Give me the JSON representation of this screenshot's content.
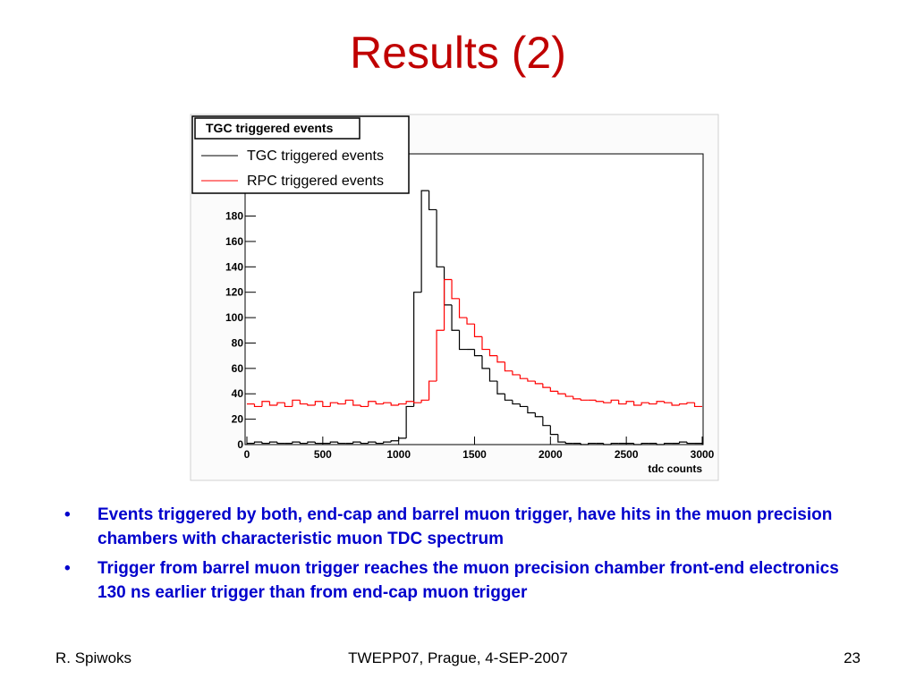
{
  "slide": {
    "title": "Results (2)",
    "bullets": [
      "Events triggered by both, end-cap and barrel muon trigger, have hits in the muon precision chambers with characteristic muon TDC spectrum",
      "Trigger from barrel muon trigger reaches the muon precision chamber front-end electronics 130 ns earlier trigger than from end-cap muon trigger"
    ],
    "footer": {
      "left": "R. Spiwoks",
      "center": "TWEPP07, Prague, 4-SEP-2007",
      "right": "23"
    }
  },
  "chart_data": {
    "type": "histogram",
    "title": "TGC triggered events",
    "x_label": "tdc counts",
    "bins": [
      0,
      50,
      100,
      150,
      200,
      250,
      300,
      350,
      400,
      450,
      500,
      550,
      600,
      650,
      700,
      750,
      800,
      850,
      900,
      950,
      1000,
      1050,
      1100,
      1150,
      1200,
      1250,
      1300,
      1350,
      1400,
      1450,
      1500,
      1550,
      1600,
      1650,
      1700,
      1750,
      1800,
      1850,
      1900,
      1950,
      2000,
      2050,
      2100,
      2150,
      2200,
      2250,
      2300,
      2350,
      2400,
      2450,
      2500,
      2550,
      2600,
      2650,
      2700,
      2750,
      2800,
      2850,
      2900,
      2950,
      3000
    ],
    "series": [
      {
        "name": "TGC triggered events",
        "color": "#000000",
        "values": [
          1,
          2,
          1,
          2,
          1,
          1,
          2,
          1,
          2,
          1,
          1,
          2,
          1,
          1,
          2,
          1,
          2,
          1,
          2,
          3,
          5,
          30,
          120,
          200,
          185,
          140,
          110,
          90,
          75,
          75,
          70,
          60,
          50,
          40,
          35,
          32,
          30,
          25,
          22,
          15,
          8,
          2,
          1,
          1,
          0,
          1,
          1,
          0,
          1,
          1,
          1,
          0,
          1,
          1,
          0,
          1,
          1,
          2,
          1,
          1
        ]
      },
      {
        "name": "RPC triggered events",
        "color": "#ff0000",
        "values": [
          32,
          30,
          34,
          31,
          33,
          30,
          35,
          32,
          31,
          34,
          30,
          33,
          32,
          35,
          31,
          30,
          34,
          32,
          33,
          31,
          32,
          34,
          33,
          35,
          50,
          90,
          130,
          115,
          100,
          95,
          85,
          75,
          70,
          65,
          58,
          55,
          52,
          50,
          48,
          45,
          42,
          40,
          38,
          36,
          35,
          35,
          34,
          33,
          35,
          32,
          34,
          31,
          33,
          32,
          34,
          33,
          31,
          32,
          33,
          30
        ]
      }
    ],
    "xlim": [
      0,
      3000
    ],
    "xticks": [
      0,
      500,
      1000,
      1500,
      2000,
      2500,
      3000
    ],
    "ylim": [
      0,
      229
    ],
    "yticks": [
      0,
      20,
      40,
      60,
      80,
      100,
      120,
      140,
      160,
      180
    ]
  }
}
